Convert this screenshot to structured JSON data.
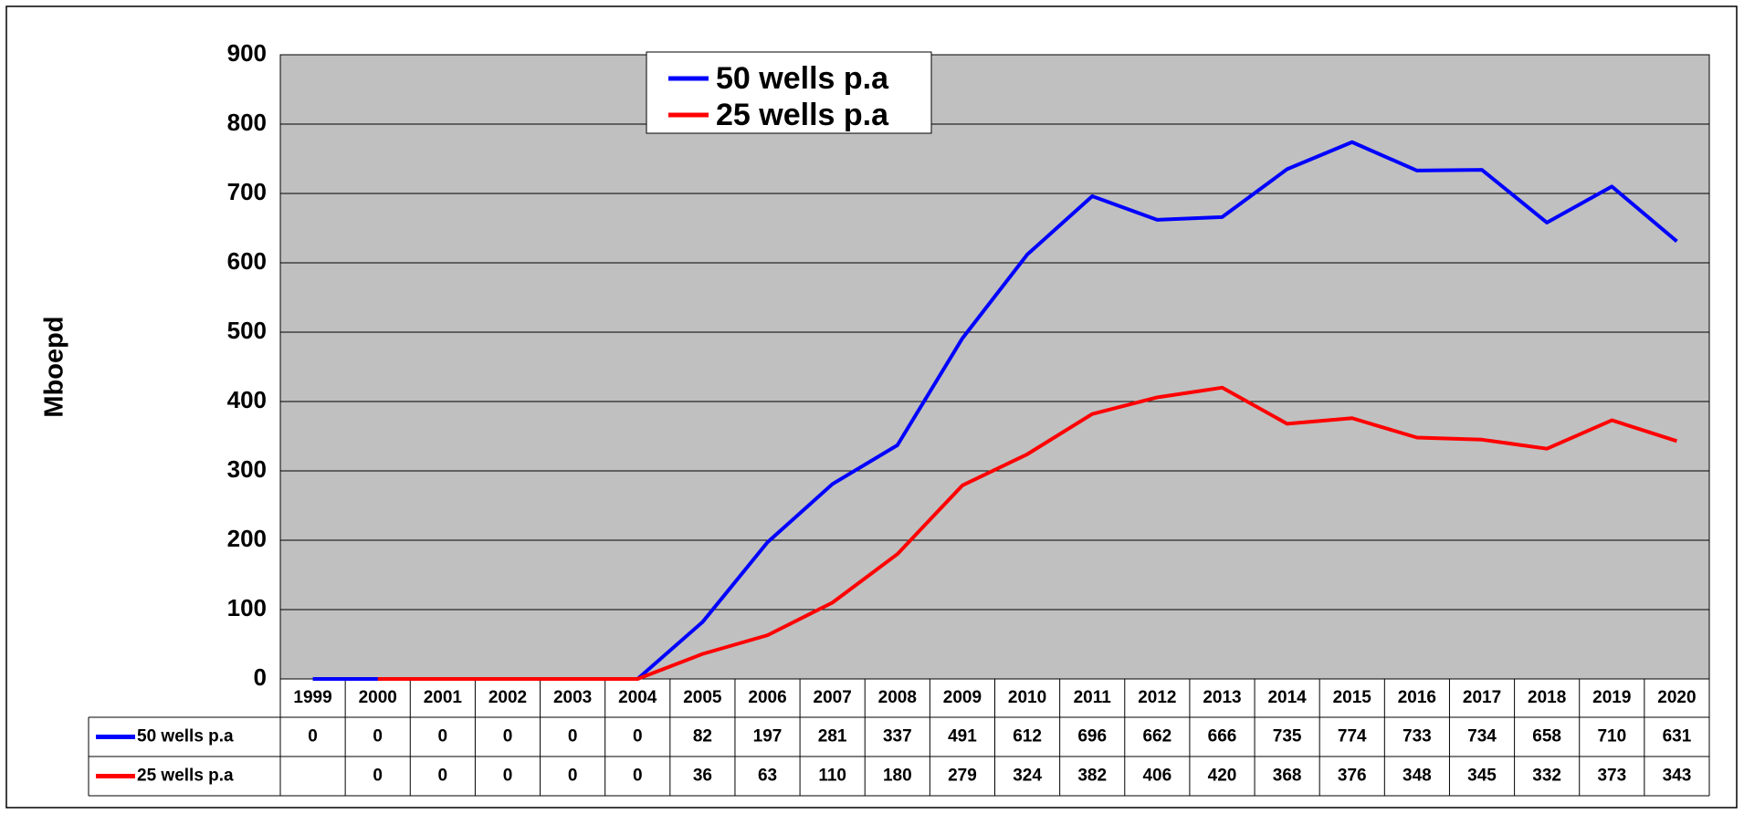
{
  "chart_data": {
    "type": "line",
    "y_label": "Mboepd",
    "categories": [
      "1999",
      "2000",
      "2001",
      "2002",
      "2003",
      "2004",
      "2005",
      "2006",
      "2007",
      "2008",
      "2009",
      "2010",
      "2011",
      "2012",
      "2013",
      "2014",
      "2015",
      "2016",
      "2017",
      "2018",
      "2019",
      "2020"
    ],
    "series": [
      {
        "name": "50 wells p.a",
        "color": "#0000ff",
        "values": [
          0,
          0,
          0,
          0,
          0,
          0,
          82,
          197,
          281,
          337,
          491,
          612,
          696,
          662,
          666,
          735,
          774,
          733,
          734,
          658,
          710,
          631
        ]
      },
      {
        "name": "25 wells p.a",
        "color": "#ff0000",
        "values": [
          null,
          0,
          0,
          0,
          0,
          0,
          36,
          63,
          110,
          180,
          279,
          324,
          382,
          406,
          420,
          368,
          376,
          348,
          345,
          332,
          373,
          343
        ]
      }
    ],
    "ylim": [
      0,
      900
    ],
    "yticks": [
      0,
      100,
      200,
      300,
      400,
      500,
      600,
      700,
      800,
      900
    ],
    "grid": true
  }
}
